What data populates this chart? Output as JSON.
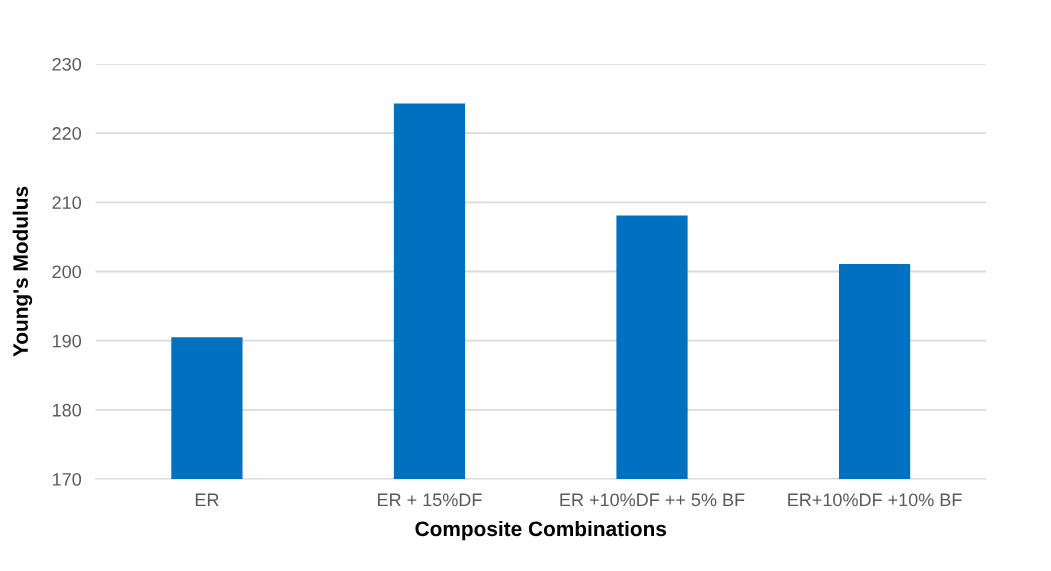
{
  "chart_data": {
    "type": "bar",
    "xlabel": "Composite Combinations",
    "ylabel": "Young's Modulus",
    "categories": [
      "ER",
      "ER + 15%DF",
      "ER +10%DF ++ 5% BF",
      "ER+10%DF +10% BF"
    ],
    "values": [
      190.5,
      224.3,
      208.1,
      201.1
    ],
    "color": "#0070c0",
    "ylim": [
      170,
      230
    ],
    "yticks": [
      170,
      180,
      190,
      200,
      210,
      220,
      230
    ],
    "grid": "y",
    "legend": false
  }
}
